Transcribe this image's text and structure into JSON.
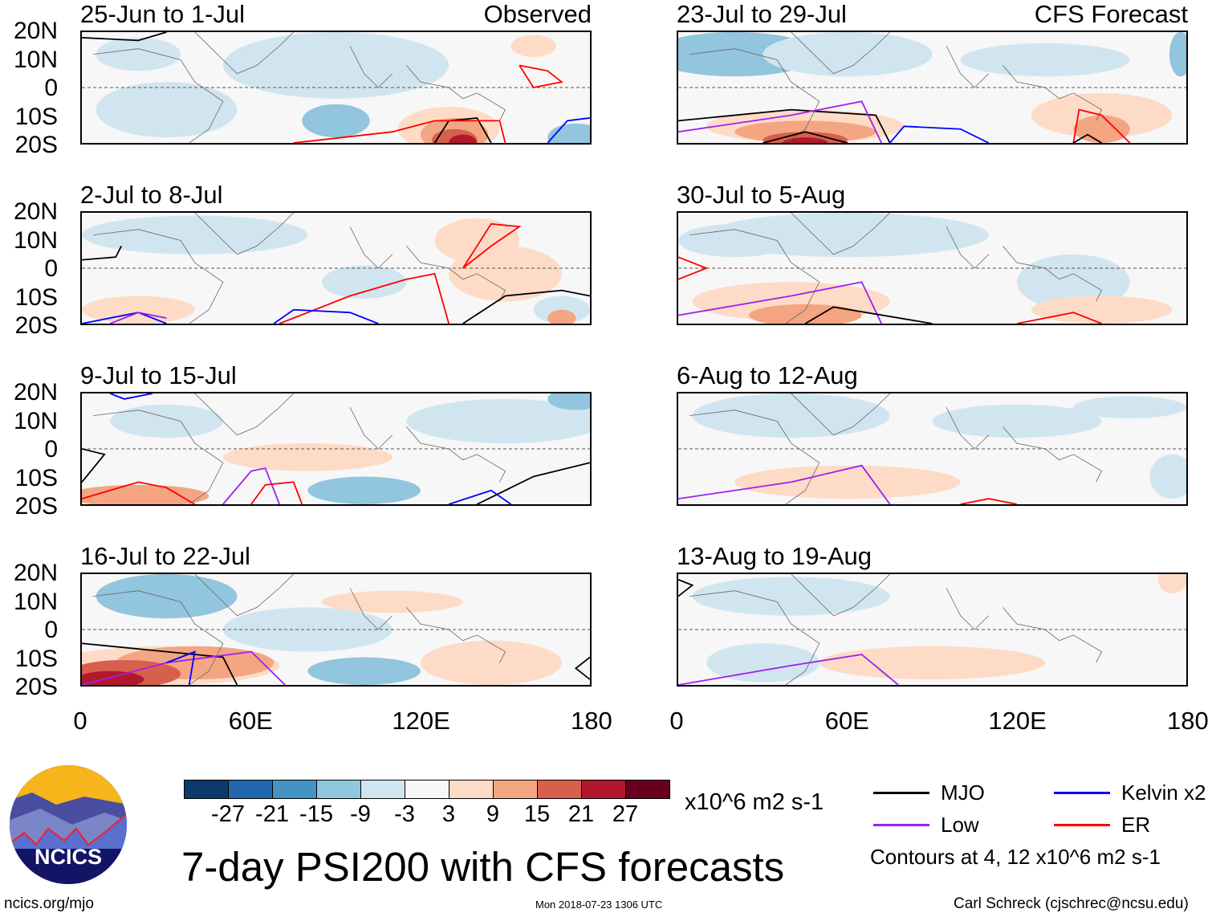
{
  "panels": [
    {
      "title": "25-Jun to 1-Jul",
      "label": "Observed"
    },
    {
      "title": "2-Jul to 8-Jul"
    },
    {
      "title": "9-Jul to 15-Jul"
    },
    {
      "title": "16-Jul to 22-Jul"
    },
    {
      "title": "23-Jul to 29-Jul",
      "label": "CFS Forecast"
    },
    {
      "title": "30-Jul to 5-Aug"
    },
    {
      "title": "6-Aug to 12-Aug"
    },
    {
      "title": "13-Aug to 19-Aug"
    }
  ],
  "y_labels": [
    "20N",
    "10N",
    "0",
    "10S",
    "20S"
  ],
  "x_labels": [
    "0",
    "60E",
    "120E",
    "180"
  ],
  "colorbar": {
    "colors": [
      "#0b3a6b",
      "#2166ac",
      "#4393c3",
      "#92c5de",
      "#d1e5f0",
      "#f7f7f7",
      "#fddbc7",
      "#f4a582",
      "#d6604d",
      "#b2182b",
      "#67001f"
    ],
    "ticks": [
      "-27",
      "-21",
      "-15",
      "-9",
      "-3",
      "3",
      "9",
      "15",
      "21",
      "27"
    ],
    "units": "x10^6 m2 s-1"
  },
  "legend": {
    "items": [
      {
        "label": "MJO",
        "color": "#000000"
      },
      {
        "label": "Kelvin x2",
        "color": "#0000ff"
      },
      {
        "label": "Low",
        "color": "#a020f0"
      },
      {
        "label": "ER",
        "color": "#ff0000"
      }
    ],
    "contours_note": "Contours at 4, 12 x10^6 m2 s-1"
  },
  "title": "7-day PSI200 with CFS forecasts",
  "logo_text": "NCICS",
  "footer": {
    "left": "ncics.org/mjo",
    "center": "Mon 2018-07-23 1306 UTC",
    "right": "Carl Schreck (cjschrec@ncsu.edu)"
  }
}
